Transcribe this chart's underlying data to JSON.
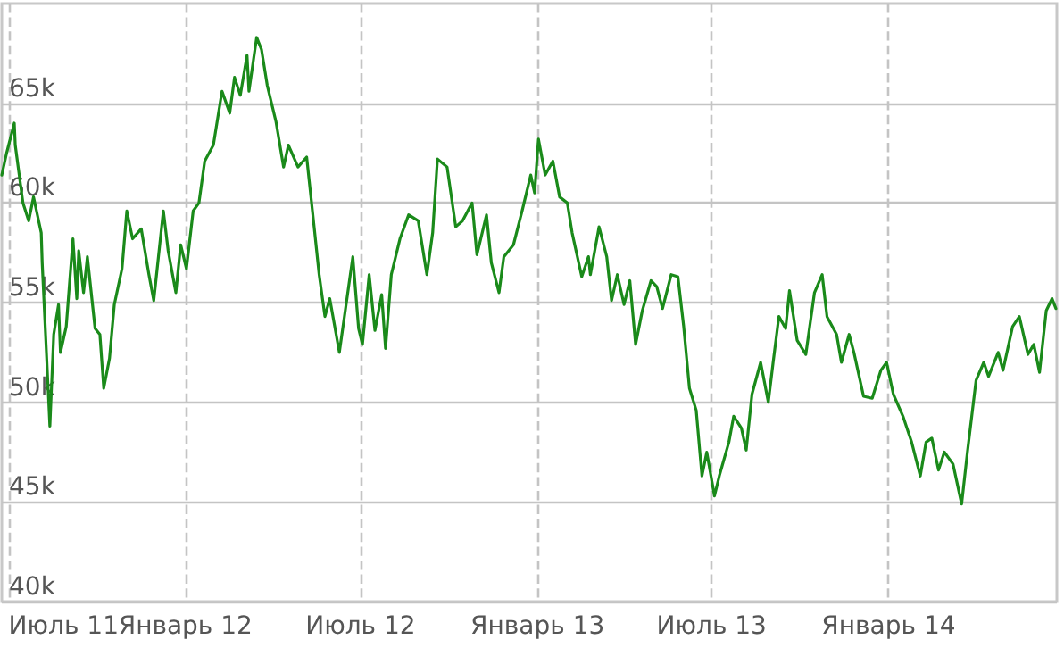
{
  "chart_data": {
    "type": "line",
    "x": [
      "2011-06-24",
      "2011-06-29",
      "2011-07-07",
      "2011-07-08",
      "2011-07-16",
      "2011-07-22",
      "2011-07-27",
      "2011-08-04",
      "2011-08-05",
      "2011-08-09",
      "2011-08-13",
      "2011-08-17",
      "2011-08-22",
      "2011-08-24",
      "2011-08-30",
      "2011-09-06",
      "2011-09-10",
      "2011-09-12",
      "2011-09-17",
      "2011-09-21",
      "2011-09-29",
      "2011-10-04",
      "2011-10-08",
      "2011-10-14",
      "2011-10-19",
      "2011-10-27",
      "2011-11-01",
      "2011-11-07",
      "2011-11-16",
      "2011-11-24",
      "2011-11-29",
      "2011-12-09",
      "2011-12-14",
      "2011-12-22",
      "2011-12-27",
      "2012-01-02",
      "2012-01-09",
      "2012-01-15",
      "2012-01-21",
      "2012-01-30",
      "2012-02-08",
      "2012-02-16",
      "2012-02-21",
      "2012-02-27",
      "2012-03-05",
      "2012-03-07",
      "2012-03-15",
      "2012-03-20",
      "2012-03-26",
      "2012-04-04",
      "2012-04-12",
      "2012-04-17",
      "2012-04-27",
      "2012-05-06",
      "2012-05-12",
      "2012-05-19",
      "2012-05-25",
      "2012-05-30",
      "2012-06-09",
      "2012-06-16",
      "2012-06-23",
      "2012-06-29",
      "2012-07-03",
      "2012-07-10",
      "2012-07-16",
      "2012-07-23",
      "2012-07-27",
      "2012-08-02",
      "2012-08-11",
      "2012-08-20",
      "2012-08-30",
      "2012-09-08",
      "2012-09-14",
      "2012-09-19",
      "2012-09-29",
      "2012-10-08",
      "2012-10-15",
      "2012-10-25",
      "2012-10-30",
      "2012-11-09",
      "2012-11-14",
      "2012-11-22",
      "2012-11-27",
      "2012-12-07",
      "2012-12-16",
      "2012-12-25",
      "2012-12-29",
      "2013-01-02",
      "2013-01-09",
      "2013-01-17",
      "2013-01-24",
      "2013-02-01",
      "2013-02-06",
      "2013-02-16",
      "2013-02-23",
      "2013-02-25",
      "2013-03-06",
      "2013-03-14",
      "2013-03-19",
      "2013-03-25",
      "2013-04-01",
      "2013-04-07",
      "2013-04-13",
      "2013-04-20",
      "2013-04-29",
      "2013-05-05",
      "2013-05-11",
      "2013-05-20",
      "2013-05-27",
      "2013-06-02",
      "2013-06-08",
      "2013-06-15",
      "2013-06-21",
      "2013-06-26",
      "2013-07-04",
      "2013-07-09",
      "2013-07-19",
      "2013-07-24",
      "2013-08-01",
      "2013-08-06",
      "2013-08-12",
      "2013-08-21",
      "2013-08-29",
      "2013-09-03",
      "2013-09-09",
      "2013-09-16",
      "2013-09-20",
      "2013-09-28",
      "2013-10-07",
      "2013-10-16",
      "2013-10-24",
      "2013-10-29",
      "2013-11-08",
      "2013-11-13",
      "2013-11-21",
      "2013-11-26",
      "2013-12-06",
      "2013-12-15",
      "2013-12-24",
      "2013-12-30",
      "2014-01-06",
      "2014-01-16",
      "2014-01-25",
      "2014-02-03",
      "2014-02-09",
      "2014-02-15",
      "2014-02-22",
      "2014-02-28",
      "2014-03-09",
      "2014-03-18",
      "2014-03-24",
      "2014-04-02",
      "2014-04-10",
      "2014-04-15",
      "2014-04-25",
      "2014-04-30",
      "2014-05-10",
      "2014-05-17",
      "2014-05-26",
      "2014-06-01",
      "2014-06-07",
      "2014-06-14",
      "2014-06-20",
      "2014-06-24"
    ],
    "series": [
      {
        "color": "#1a8a1a",
        "values": [
          61400,
          62500,
          64000,
          62900,
          60000,
          59100,
          60300,
          58500,
          57000,
          52900,
          48800,
          53400,
          54900,
          52500,
          53800,
          58200,
          55200,
          57600,
          55500,
          57300,
          53700,
          53400,
          50700,
          52200,
          54900,
          56700,
          59600,
          58200,
          58700,
          56400,
          55100,
          59600,
          57600,
          55500,
          57900,
          56700,
          59600,
          60000,
          62100,
          62900,
          65600,
          64500,
          66300,
          65400,
          67400,
          65600,
          68300,
          67700,
          65900,
          64100,
          61800,
          62900,
          61800,
          62300,
          59600,
          56400,
          54300,
          55200,
          52500,
          54900,
          57300,
          53700,
          52900,
          56400,
          53600,
          55400,
          52700,
          56400,
          58200,
          59400,
          59100,
          56400,
          58500,
          62200,
          61800,
          58800,
          59100,
          60000,
          57400,
          59400,
          57000,
          55500,
          57300,
          57900,
          59600,
          61400,
          60500,
          63200,
          61400,
          62100,
          60300,
          60000,
          58500,
          56300,
          57300,
          56400,
          58800,
          57300,
          55100,
          56400,
          54900,
          56100,
          52900,
          54600,
          56100,
          55800,
          54700,
          56400,
          56300,
          53800,
          50700,
          49600,
          46300,
          47500,
          45300,
          46300,
          48000,
          49300,
          48700,
          47600,
          50400,
          52000,
          50000,
          52000,
          54300,
          53700,
          55600,
          53100,
          52400,
          55500,
          56400,
          54300,
          53400,
          52000,
          53400,
          52500,
          50300,
          50200,
          51600,
          52000,
          50400,
          49300,
          48000,
          46300,
          48000,
          48200,
          46600,
          47500,
          46900,
          44900,
          47500,
          51100,
          52000,
          51300,
          52500,
          51600,
          53800,
          54300,
          52400,
          52900,
          51500,
          54600,
          55200,
          54700
        ]
      }
    ],
    "xlim": [
      "2011-06-24",
      "2014-06-25"
    ],
    "xticks": [
      {
        "value": "2011-07-01",
        "label": "Июль 11"
      },
      {
        "value": "2012-01-01",
        "label": "Январь 12"
      },
      {
        "value": "2012-07-01",
        "label": "Июль 12"
      },
      {
        "value": "2013-01-01",
        "label": "Январь 13"
      },
      {
        "value": "2013-07-01",
        "label": "Июль 13"
      },
      {
        "value": "2014-01-01",
        "label": "Январь 14"
      }
    ],
    "ylim": [
      40000,
      70000
    ],
    "yticks": [
      {
        "value": 40000,
        "label": "40k"
      },
      {
        "value": 45000,
        "label": "45k"
      },
      {
        "value": 50000,
        "label": "50k"
      },
      {
        "value": 55000,
        "label": "55k"
      },
      {
        "value": 60000,
        "label": "60k"
      },
      {
        "value": 65000,
        "label": "65k"
      }
    ],
    "grid": true,
    "marker": "none",
    "line_style": "solid"
  }
}
